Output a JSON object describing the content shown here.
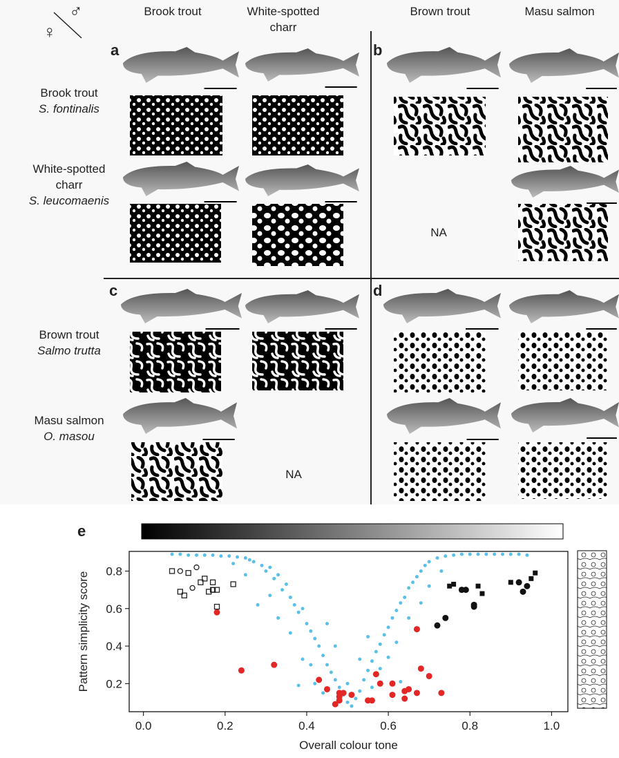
{
  "figure": {
    "sex_symbols": {
      "female": "♀",
      "male": "♂"
    },
    "columns": [
      "Brook trout",
      "White-spotted\ncharr",
      "Brown trout",
      "Masu salmon"
    ],
    "rows": [
      {
        "common": "Brook trout",
        "latin": "S. fontinalis"
      },
      {
        "common": "White-spotted\ncharr",
        "latin": "S. leucomaenis"
      },
      {
        "common": "Brown trout",
        "latin": "Salmo trutta"
      },
      {
        "common": "Masu salmon",
        "latin": "O. masou"
      }
    ],
    "panels": [
      "a",
      "b",
      "c",
      "d",
      "e"
    ],
    "na": "NA"
  },
  "chart_data": {
    "type": "scatter",
    "xlabel": "Overall colour tone",
    "ylabel": "Pattern simplicity score",
    "xlim": [
      -0.035,
      1.04
    ],
    "ylim": [
      0.05,
      0.905
    ],
    "xticks": [
      {
        "value": 0,
        "label": "0.0"
      },
      0.2,
      0.4,
      0.6,
      0.8,
      {
        "value": 1,
        "label": "1.0"
      }
    ],
    "yticks": [
      0.2,
      0.4,
      0.6,
      0.8
    ],
    "series": [
      {
        "color": "#5bc0e8",
        "marker": "circle",
        "filled": true,
        "size": 2.5,
        "x": [
          0.07,
          0.09,
          0.11,
          0.13,
          0.15,
          0.17,
          0.19,
          0.21,
          0.23,
          0.25,
          0.26,
          0.27,
          0.29,
          0.3,
          0.31,
          0.32,
          0.33,
          0.34,
          0.35,
          0.36,
          0.37,
          0.38,
          0.39,
          0.4,
          0.41,
          0.42,
          0.43,
          0.44,
          0.45,
          0.46,
          0.47,
          0.48,
          0.49,
          0.5,
          0.51,
          0.52,
          0.53,
          0.54,
          0.55,
          0.56,
          0.57,
          0.58,
          0.59,
          0.6,
          0.61,
          0.62,
          0.63,
          0.64,
          0.65,
          0.66,
          0.67,
          0.68,
          0.69,
          0.7,
          0.72,
          0.74,
          0.76,
          0.78,
          0.8,
          0.82,
          0.84,
          0.86,
          0.88,
          0.9,
          0.92,
          0.94,
          0.22,
          0.28,
          0.31,
          0.36,
          0.39,
          0.38,
          0.42,
          0.44,
          0.45,
          0.47,
          0.5,
          0.53,
          0.55,
          0.56,
          0.58,
          0.6,
          0.62,
          0.63,
          0.65,
          0.68,
          0.7,
          0.73,
          0.25,
          0.33,
          0.41
        ],
        "values": [
          0.89,
          0.89,
          0.885,
          0.885,
          0.885,
          0.885,
          0.88,
          0.88,
          0.875,
          0.87,
          0.86,
          0.85,
          0.83,
          0.8,
          0.82,
          0.76,
          0.78,
          0.7,
          0.73,
          0.66,
          0.62,
          0.58,
          0.6,
          0.52,
          0.48,
          0.44,
          0.4,
          0.35,
          0.3,
          0.26,
          0.22,
          0.18,
          0.14,
          0.1,
          0.08,
          0.12,
          0.16,
          0.22,
          0.27,
          0.32,
          0.37,
          0.41,
          0.46,
          0.5,
          0.55,
          0.59,
          0.63,
          0.66,
          0.71,
          0.74,
          0.77,
          0.8,
          0.83,
          0.85,
          0.87,
          0.88,
          0.885,
          0.89,
          0.89,
          0.89,
          0.89,
          0.89,
          0.89,
          0.89,
          0.89,
          0.885,
          0.84,
          0.62,
          0.67,
          0.47,
          0.33,
          0.19,
          0.2,
          0.15,
          0.52,
          0.4,
          0.2,
          0.33,
          0.45,
          0.18,
          0.28,
          0.34,
          0.42,
          0.21,
          0.55,
          0.63,
          0.72,
          0.8,
          0.78,
          0.55,
          0.3
        ]
      },
      {
        "color": "#e32626",
        "marker": "circle",
        "filled": true,
        "size": 4.5,
        "x": [
          0.18,
          0.24,
          0.32,
          0.43,
          0.45,
          0.47,
          0.48,
          0.48,
          0.48,
          0.49,
          0.51,
          0.55,
          0.56,
          0.57,
          0.58,
          0.61,
          0.61,
          0.64,
          0.64,
          0.65,
          0.67,
          0.67,
          0.68,
          0.7,
          0.73
        ],
        "values": [
          0.58,
          0.27,
          0.3,
          0.22,
          0.17,
          0.09,
          0.11,
          0.15,
          0.13,
          0.15,
          0.14,
          0.11,
          0.11,
          0.25,
          0.2,
          0.14,
          0.2,
          0.12,
          0.16,
          0.17,
          0.15,
          0.49,
          0.28,
          0.24,
          0.15
        ]
      },
      {
        "color": "#222222",
        "marker": "square",
        "filled": false,
        "size": 7,
        "x": [
          0.07,
          0.11,
          0.09,
          0.1,
          0.15,
          0.14,
          0.17,
          0.16,
          0.18,
          0.17,
          0.18,
          0.22
        ],
        "values": [
          0.8,
          0.79,
          0.69,
          0.67,
          0.76,
          0.74,
          0.7,
          0.69,
          0.7,
          0.74,
          0.61,
          0.73
        ]
      },
      {
        "color": "#222222",
        "marker": "circle",
        "filled": false,
        "size": 3.5,
        "x": [
          0.09,
          0.13,
          0.12,
          0.17
        ],
        "values": [
          0.8,
          0.82,
          0.71,
          0.7
        ]
      },
      {
        "color": "#111111",
        "marker": "square",
        "filled": true,
        "size": 7,
        "x": [
          0.76,
          0.75,
          0.78,
          0.83,
          0.82,
          0.9,
          0.95,
          0.96
        ],
        "values": [
          0.73,
          0.72,
          0.7,
          0.68,
          0.72,
          0.74,
          0.76,
          0.79
        ]
      },
      {
        "color": "#111111",
        "marker": "circle",
        "filled": true,
        "size": 4.5,
        "x": [
          0.72,
          0.74,
          0.78,
          0.79,
          0.81,
          0.81,
          0.92,
          0.93,
          0.94
        ],
        "values": [
          0.51,
          0.55,
          0.7,
          0.7,
          0.62,
          0.61,
          0.74,
          0.69,
          0.72
        ]
      }
    ]
  }
}
